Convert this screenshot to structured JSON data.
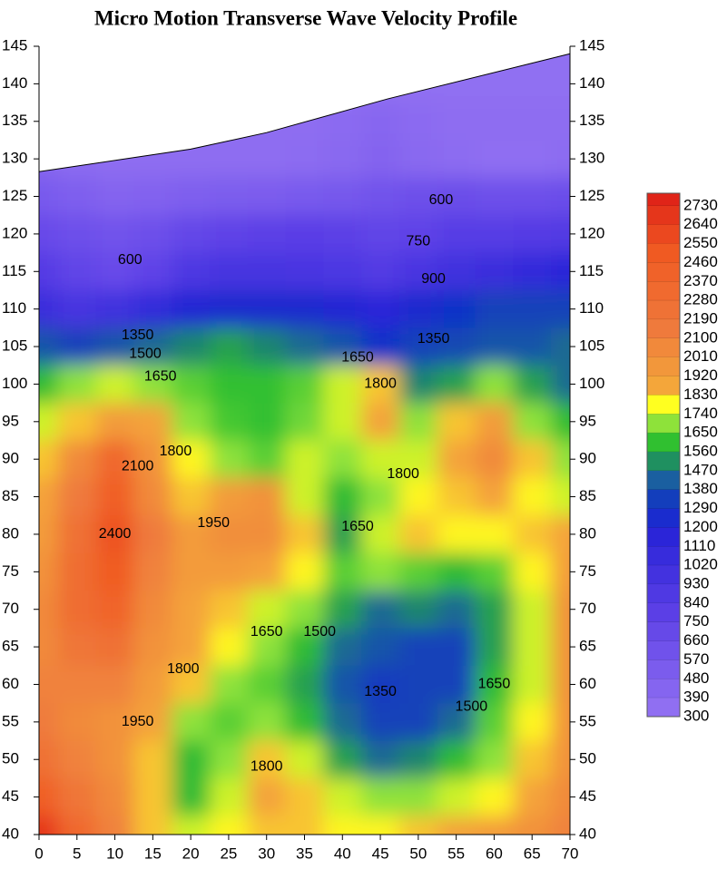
{
  "chart_data": {
    "type": "contour",
    "title": "Micro Motion Transverse Wave Velocity Profile",
    "x": [
      0,
      5,
      10,
      15,
      20,
      25,
      30,
      35,
      40,
      45,
      50,
      55,
      60,
      65,
      70
    ],
    "y": [
      140,
      135,
      130,
      125,
      120,
      115,
      110,
      105,
      100,
      95,
      90,
      85,
      80,
      75,
      70,
      65,
      60,
      55,
      50,
      45,
      40
    ],
    "z": [
      [
        300,
        300,
        300,
        300,
        300,
        300,
        300,
        300,
        300,
        300,
        300,
        300,
        300,
        300,
        300
      ],
      [
        320,
        320,
        320,
        320,
        320,
        320,
        320,
        320,
        340,
        380,
        340,
        320,
        320,
        320,
        320
      ],
      [
        380,
        330,
        320,
        320,
        320,
        320,
        320,
        330,
        360,
        400,
        360,
        330,
        310,
        310,
        330
      ],
      [
        500,
        450,
        400,
        420,
        450,
        470,
        480,
        500,
        520,
        560,
        600,
        620,
        600,
        600,
        620
      ],
      [
        650,
        600,
        560,
        600,
        680,
        720,
        740,
        760,
        750,
        700,
        720,
        780,
        780,
        800,
        820
      ],
      [
        800,
        700,
        650,
        720,
        850,
        900,
        900,
        880,
        860,
        820,
        880,
        950,
        1000,
        1050,
        1100
      ],
      [
        1000,
        900,
        950,
        1050,
        1150,
        1200,
        1200,
        1200,
        1150,
        1100,
        1200,
        1250,
        1300,
        1300,
        1300
      ],
      [
        1350,
        1300,
        1350,
        1400,
        1450,
        1500,
        1450,
        1400,
        1350,
        1250,
        1300,
        1320,
        1350,
        1350,
        1400
      ],
      [
        1550,
        1650,
        1700,
        1650,
        1600,
        1560,
        1560,
        1600,
        1700,
        1800,
        1450,
        1500,
        1650,
        1500,
        1400
      ],
      [
        1700,
        1800,
        1900,
        1850,
        1650,
        1580,
        1560,
        1620,
        1700,
        1850,
        1650,
        1800,
        1900,
        1650,
        1550
      ],
      [
        1800,
        2000,
        2300,
        1950,
        1750,
        1650,
        1600,
        1700,
        1650,
        1700,
        1700,
        1850,
        2000,
        1800,
        1650
      ],
      [
        1850,
        2100,
        2400,
        2000,
        1800,
        1900,
        1950,
        1700,
        1550,
        1650,
        1750,
        1800,
        1850,
        1750,
        1700
      ],
      [
        1900,
        2200,
        2500,
        2100,
        1900,
        1980,
        1980,
        1800,
        1500,
        1700,
        1800,
        1750,
        1750,
        1800,
        1850
      ],
      [
        1950,
        2250,
        2450,
        2050,
        1900,
        1900,
        1850,
        1750,
        1600,
        1650,
        1600,
        1550,
        1600,
        1750,
        1900
      ],
      [
        2000,
        2250,
        2350,
        2000,
        1850,
        1800,
        1700,
        1650,
        1500,
        1400,
        1450,
        1400,
        1500,
        1700,
        1950
      ],
      [
        2000,
        2150,
        2200,
        1950,
        1850,
        1750,
        1650,
        1550,
        1400,
        1350,
        1300,
        1300,
        1500,
        1700,
        1950
      ],
      [
        2050,
        2050,
        2050,
        1900,
        1800,
        1650,
        1600,
        1500,
        1350,
        1280,
        1300,
        1300,
        1550,
        1700,
        1950
      ],
      [
        2100,
        2000,
        1950,
        1850,
        1650,
        1600,
        1650,
        1550,
        1400,
        1300,
        1300,
        1400,
        1600,
        1750,
        1950
      ],
      [
        2200,
        2050,
        1950,
        1800,
        1550,
        1650,
        1800,
        1700,
        1500,
        1400,
        1450,
        1550,
        1650,
        1800,
        1950
      ],
      [
        2400,
        2150,
        2000,
        1800,
        1550,
        1700,
        1850,
        1800,
        1700,
        1650,
        1650,
        1700,
        1750,
        1850,
        2000
      ],
      [
        2650,
        2300,
        2050,
        1800,
        1700,
        1750,
        1800,
        1800,
        1750,
        1750,
        1800,
        1850,
        1900,
        1950,
        2050
      ]
    ],
    "top_boundary": {
      "x": [
        0,
        20,
        30,
        46,
        70
      ],
      "y": [
        128.3,
        131.3,
        133.5,
        138,
        144
      ]
    },
    "xlim": [
      0,
      70
    ],
    "ylim": [
      40,
      145
    ],
    "xticks": [
      0,
      5,
      10,
      15,
      20,
      25,
      30,
      35,
      40,
      45,
      50,
      55,
      60,
      65,
      70
    ],
    "yticks": [
      40,
      45,
      50,
      55,
      60,
      65,
      70,
      75,
      80,
      85,
      90,
      95,
      100,
      105,
      110,
      115,
      120,
      125,
      130,
      135,
      140,
      145
    ],
    "colorscale": [
      [
        300,
        "#906ff2"
      ],
      [
        750,
        "#5b3fe6"
      ],
      [
        1110,
        "#2b25d8"
      ],
      [
        1250,
        "#1030c8"
      ],
      [
        1380,
        "#1a5fa0"
      ],
      [
        1470,
        "#1f9060"
      ],
      [
        1560,
        "#30c030"
      ],
      [
        1650,
        "#8ee23a"
      ],
      [
        1740,
        "#ffff20"
      ],
      [
        1830,
        "#f4a63a"
      ],
      [
        2100,
        "#ef7a3c"
      ],
      [
        2460,
        "#f05a22"
      ],
      [
        2730,
        "#e02418"
      ]
    ],
    "zlim": [
      300,
      2790
    ],
    "colorbar_ticks": [
      2730,
      2640,
      2550,
      2460,
      2370,
      2280,
      2190,
      2100,
      2010,
      1920,
      1830,
      1740,
      1650,
      1560,
      1470,
      1380,
      1290,
      1200,
      1110,
      1020,
      930,
      840,
      750,
      660,
      570,
      480,
      390,
      300
    ],
    "contour_labels": [
      {
        "value": 600,
        "x": 53,
        "y": 124.5
      },
      {
        "value": 750,
        "x": 50,
        "y": 119
      },
      {
        "value": 900,
        "x": 52,
        "y": 114
      },
      {
        "value": 600,
        "x": 12,
        "y": 116.5
      },
      {
        "value": 1350,
        "x": 13,
        "y": 106.5
      },
      {
        "value": 1500,
        "x": 14,
        "y": 104
      },
      {
        "value": 1650,
        "x": 16,
        "y": 101
      },
      {
        "value": 1650,
        "x": 42,
        "y": 103.5
      },
      {
        "value": 1350,
        "x": 52,
        "y": 106
      },
      {
        "value": 1800,
        "x": 45,
        "y": 100
      },
      {
        "value": 1800,
        "x": 48,
        "y": 88
      },
      {
        "value": 1650,
        "x": 42,
        "y": 81
      },
      {
        "value": 1950,
        "x": 23,
        "y": 81.5
      },
      {
        "value": 2400,
        "x": 10,
        "y": 80
      },
      {
        "value": 1800,
        "x": 18,
        "y": 91
      },
      {
        "value": 2100,
        "x": 13,
        "y": 89
      },
      {
        "value": 1650,
        "x": 30,
        "y": 67
      },
      {
        "value": 1500,
        "x": 37,
        "y": 67
      },
      {
        "value": 1350,
        "x": 45,
        "y": 59
      },
      {
        "value": 1500,
        "x": 57,
        "y": 57
      },
      {
        "value": 1650,
        "x": 60,
        "y": 60
      },
      {
        "value": 1800,
        "x": 19,
        "y": 62
      },
      {
        "value": 1950,
        "x": 13,
        "y": 55
      },
      {
        "value": 1800,
        "x": 30,
        "y": 49
      }
    ]
  }
}
